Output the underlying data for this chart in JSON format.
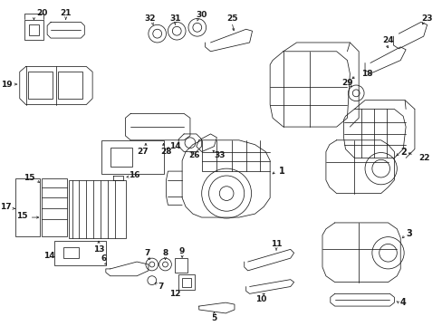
{
  "bg_color": "#ffffff",
  "line_color": "#1a1a1a",
  "figsize": [
    4.89,
    3.6
  ],
  "dpi": 100,
  "lw": 0.55
}
